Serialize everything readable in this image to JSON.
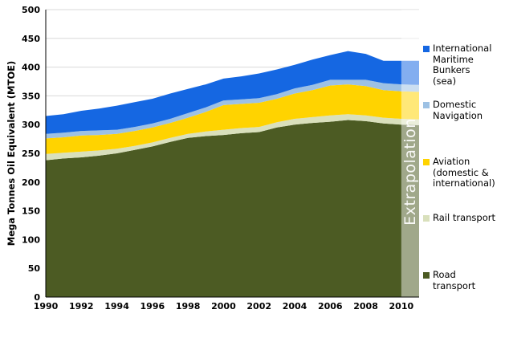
{
  "y_axis": {
    "label": "Mega Tonnes Oil Equivalent (MTOE)",
    "min": 0,
    "max": 500,
    "ticks": [
      0,
      50,
      100,
      150,
      200,
      250,
      300,
      350,
      400,
      450,
      500
    ]
  },
  "x_axis": {
    "ticks": [
      1990,
      1992,
      1994,
      1996,
      1998,
      2000,
      2002,
      2004,
      2006,
      2008,
      2010
    ]
  },
  "extrapolation": {
    "label": "Extrapolation",
    "start_year": 2010
  },
  "colors": {
    "gridline": "#d9d9d9",
    "axis": "#000000",
    "extrapolation_overlay": "rgba(255,255,255,0.47)"
  },
  "chart_data": {
    "type": "area",
    "stacked": true,
    "title": "",
    "xlabel": "",
    "ylabel": "Mega Tonnes Oil Equivalent (MTOE)",
    "ylim": [
      0,
      500
    ],
    "grid": "horizontal",
    "legend_position": "right",
    "x": [
      1990,
      1991,
      1992,
      1993,
      1994,
      1995,
      1996,
      1997,
      1998,
      1999,
      2000,
      2001,
      2002,
      2003,
      2004,
      2005,
      2006,
      2007,
      2008,
      2009,
      2010,
      2011
    ],
    "series": [
      {
        "name": "Road transport",
        "color": "#4c5b23",
        "values": [
          238,
          241,
          243,
          246,
          250,
          256,
          262,
          270,
          277,
          280,
          282,
          285,
          287,
          295,
          300,
          303,
          305,
          308,
          306,
          302,
          300,
          299
        ]
      },
      {
        "name": "Rail transport",
        "color": "#d9e0bc",
        "values": [
          11,
          10,
          10,
          9,
          8,
          7,
          7,
          7,
          7,
          8,
          9,
          9,
          9,
          9,
          10,
          10,
          11,
          10,
          10,
          10,
          10,
          10
        ]
      },
      {
        "name": "Aviation (domestic & international)",
        "color": "#ffd300",
        "values": [
          27,
          27,
          28,
          27,
          26,
          26,
          26,
          26,
          28,
          34,
          43,
          42,
          42,
          41,
          44,
          47,
          52,
          52,
          51,
          48,
          48,
          48
        ]
      },
      {
        "name": "Domestic Navigation",
        "color": "#9dc1e4",
        "values": [
          8,
          8,
          8,
          8,
          7,
          7,
          7,
          7,
          8,
          8,
          8,
          8,
          8,
          8,
          9,
          9,
          10,
          8,
          11,
          12,
          12,
          12
        ]
      },
      {
        "name": "International Maritime Bunkers (sea)",
        "color": "#1567e2",
        "values": [
          31,
          32,
          35,
          38,
          42,
          43,
          43,
          44,
          42,
          40,
          38,
          40,
          43,
          43,
          41,
          44,
          43,
          50,
          45,
          39,
          41,
          42
        ]
      }
    ]
  }
}
